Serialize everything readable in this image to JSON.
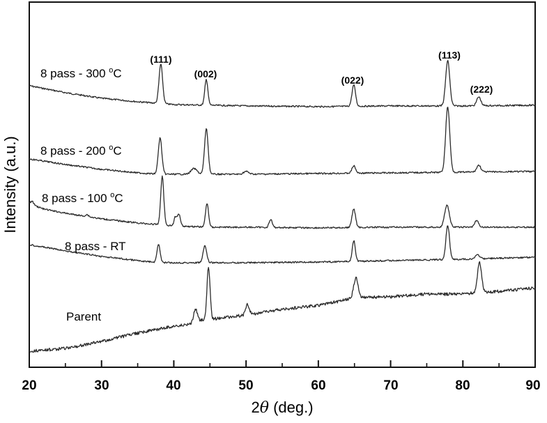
{
  "chart_data": {
    "type": "line",
    "title": "",
    "xlabel": "2θ (deg.)",
    "xlabel_parts": {
      "symbol": "2",
      "theta": "θ",
      "unit": " (deg.)"
    },
    "ylabel": "Intensity (a.u.)",
    "xlim": [
      20,
      90
    ],
    "x_ticks": [
      20,
      30,
      40,
      50,
      60,
      70,
      80,
      90
    ],
    "x_minor_ticks": [
      25,
      35,
      45,
      55,
      65,
      75,
      85
    ],
    "y_ticks": [],
    "grid": false,
    "legend_position": "inline labels left of each trace",
    "peak_labels": [
      {
        "label": "(111)",
        "x": 38.2
      },
      {
        "label": "(002)",
        "x": 44.5
      },
      {
        "label": "(022)",
        "x": 64.9
      },
      {
        "label": "(113)",
        "x": 77.9
      },
      {
        "label": "(222)",
        "x": 82.2
      }
    ],
    "series": [
      {
        "name": "8 pass - 300 °C",
        "label_main": "8 pass - 300 ",
        "label_sup": "o",
        "label_tail": "C",
        "peaks": [
          {
            "x": 38.2,
            "rel_height": 60
          },
          {
            "x": 44.5,
            "rel_height": 38
          },
          {
            "x": 64.9,
            "rel_height": 30
          },
          {
            "x": 77.9,
            "rel_height": 65
          },
          {
            "x": 82.2,
            "rel_height": 12
          }
        ],
        "baseline_points": [
          [
            20,
            123
          ],
          [
            25,
            133
          ],
          [
            30,
            141
          ],
          [
            35,
            146
          ],
          [
            40,
            150
          ],
          [
            50,
            152
          ],
          [
            60,
            153
          ],
          [
            70,
            152
          ],
          [
            80,
            152
          ],
          [
            90,
            151
          ]
        ],
        "peak_pixels": [
          [
            38.2,
            92,
            0.35
          ],
          [
            44.5,
            114,
            0.3
          ],
          [
            64.9,
            122,
            0.35
          ],
          [
            77.9,
            87,
            0.4
          ],
          [
            82.2,
            139,
            0.4
          ]
        ]
      },
      {
        "name": "8 pass - 200 °C",
        "label_main": "8 pass - 200 ",
        "label_sup": "o",
        "label_tail": "C",
        "peaks": [
          {
            "x": 38.1,
            "rel_height": 50
          },
          {
            "x": 42.8,
            "rel_height": 7
          },
          {
            "x": 44.5,
            "rel_height": 63
          },
          {
            "x": 50.0,
            "rel_height": 3
          },
          {
            "x": 64.9,
            "rel_height": 10
          },
          {
            "x": 77.9,
            "rel_height": 95
          },
          {
            "x": 82.2,
            "rel_height": 9
          }
        ],
        "baseline_points": [
          [
            20,
            228
          ],
          [
            25,
            236
          ],
          [
            30,
            243
          ],
          [
            35,
            248
          ],
          [
            38,
            250
          ],
          [
            45,
            250
          ],
          [
            50,
            250
          ],
          [
            60,
            249
          ],
          [
            70,
            248
          ],
          [
            80,
            247
          ],
          [
            90,
            246
          ]
        ],
        "peak_pixels": [
          [
            38.1,
            198,
            0.35
          ],
          [
            42.8,
            242,
            0.6
          ],
          [
            44.5,
            185,
            0.35
          ],
          [
            50.0,
            246,
            0.5
          ],
          [
            64.9,
            238,
            0.35
          ],
          [
            77.9,
            153,
            0.4
          ],
          [
            82.2,
            237,
            0.4
          ]
        ]
      },
      {
        "name": "8 pass - 100 °C",
        "label_main": "8 pass - 100 ",
        "label_sup": "o",
        "label_tail": "C",
        "peaks": [
          {
            "x": 28.0,
            "rel_height": 8
          },
          {
            "x": 38.4,
            "rel_height": 72
          },
          {
            "x": 40.2,
            "rel_height": 13
          },
          {
            "x": 40.7,
            "rel_height": 18
          },
          {
            "x": 44.6,
            "rel_height": 33
          },
          {
            "x": 53.4,
            "rel_height": 10
          },
          {
            "x": 64.9,
            "rel_height": 26
          },
          {
            "x": 77.8,
            "rel_height": 32
          },
          {
            "x": 81.9,
            "rel_height": 10
          }
        ],
        "baseline_points": [
          [
            20,
            292
          ],
          [
            22,
            300
          ],
          [
            25,
            306
          ],
          [
            30,
            314
          ],
          [
            35,
            320
          ],
          [
            40,
            324
          ],
          [
            45,
            326
          ],
          [
            50,
            326
          ],
          [
            60,
            327
          ],
          [
            70,
            326
          ],
          [
            80,
            326
          ],
          [
            90,
            326
          ]
        ],
        "peak_pixels": [
          [
            20.4,
            289,
            0.3
          ],
          [
            28.0,
            308,
            0.3
          ],
          [
            38.4,
            253,
            0.3
          ],
          [
            40.2,
            312,
            0.25
          ],
          [
            40.7,
            307,
            0.3
          ],
          [
            44.6,
            292,
            0.3
          ],
          [
            53.4,
            315,
            0.3
          ],
          [
            64.9,
            300,
            0.35
          ],
          [
            77.8,
            294,
            0.45
          ],
          [
            81.9,
            317,
            0.4
          ]
        ]
      },
      {
        "name": "8 pass - RT",
        "label_main": "8 pass - RT",
        "label_sup": "",
        "label_tail": "",
        "peaks": [
          {
            "x": 37.9,
            "rel_height": 27
          },
          {
            "x": 44.3,
            "rel_height": 24
          },
          {
            "x": 64.9,
            "rel_height": 29
          },
          {
            "x": 77.9,
            "rel_height": 51
          },
          {
            "x": 82.0,
            "rel_height": 5
          }
        ],
        "baseline_points": [
          [
            20,
            351
          ],
          [
            25,
            360
          ],
          [
            30,
            368
          ],
          [
            35,
            374
          ],
          [
            38,
            377
          ],
          [
            45,
            377
          ],
          [
            50,
            377
          ],
          [
            60,
            376
          ],
          [
            70,
            374
          ],
          [
            80,
            372
          ],
          [
            90,
            369
          ]
        ],
        "peak_pixels": [
          [
            37.9,
            350,
            0.3
          ],
          [
            44.3,
            353,
            0.35
          ],
          [
            64.9,
            345,
            0.3
          ],
          [
            77.9,
            323,
            0.35
          ],
          [
            82.0,
            366,
            0.45
          ]
        ]
      },
      {
        "name": "Parent",
        "label_main": "Parent",
        "label_sup": "",
        "label_tail": "",
        "peaks": [
          {
            "x": 43.0,
            "rel_height": 20
          },
          {
            "x": 44.8,
            "rel_height": 75
          },
          {
            "x": 50.2,
            "rel_height": 12
          },
          {
            "x": 65.2,
            "rel_height": 30
          },
          {
            "x": 82.3,
            "rel_height": 45
          }
        ],
        "baseline_points": [
          [
            20,
            504
          ],
          [
            25,
            500
          ],
          [
            30,
            490
          ],
          [
            35,
            478
          ],
          [
            40,
            468
          ],
          [
            42,
            466
          ],
          [
            44,
            459
          ],
          [
            46,
            457
          ],
          [
            50,
            452
          ],
          [
            55,
            444
          ],
          [
            60,
            438
          ],
          [
            64,
            430
          ],
          [
            66,
            427
          ],
          [
            70,
            426
          ],
          [
            75,
            422
          ],
          [
            80,
            422
          ],
          [
            82,
            420
          ],
          [
            84,
            419
          ],
          [
            90,
            413
          ]
        ],
        "peak_pixels": [
          [
            43.0,
            443,
            0.35
          ],
          [
            44.8,
            383,
            0.3
          ],
          [
            50.2,
            437,
            0.35
          ],
          [
            65.2,
            399,
            0.45
          ],
          [
            82.3,
            376,
            0.4
          ]
        ]
      }
    ]
  },
  "labels": {
    "series_300": {
      "main": "8 pass - 300 ",
      "sup": "o",
      "tail": "C"
    },
    "series_200": {
      "main": "8 pass - 200 ",
      "sup": "o",
      "tail": "C"
    },
    "series_100": {
      "main": "8 pass - 100 ",
      "sup": "o",
      "tail": "C"
    },
    "series_rt": "8 pass - RT",
    "series_parent": "Parent",
    "peak_111": "(111)",
    "peak_002": "(002)",
    "peak_022": "(022)",
    "peak_113": "(113)",
    "peak_222": "(222)",
    "ylabel": "Intensity (a.u.)",
    "xlabel_prefix": "2",
    "xlabel_theta": "θ",
    "xlabel_suffix": " (deg.)",
    "ticks": [
      "20",
      "30",
      "40",
      "50",
      "60",
      "70",
      "80",
      "90"
    ]
  }
}
